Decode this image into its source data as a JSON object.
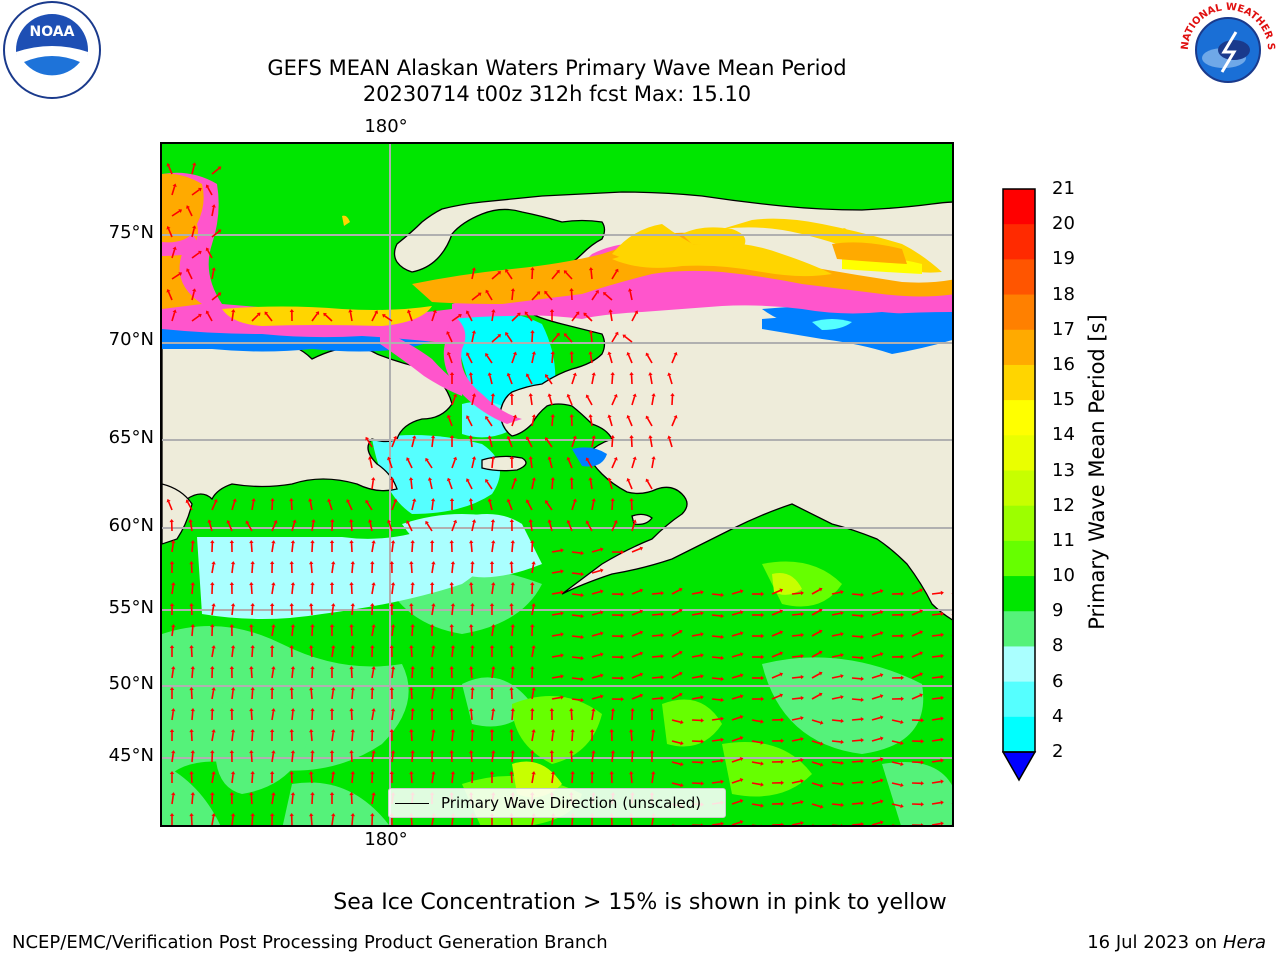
{
  "title_line1": "GEFS MEAN Alaskan Waters Primary Wave Mean Period",
  "title_line2": "20230714 t00z 312h fcst   Max: 15.10",
  "logos": {
    "left": "noaa-logo",
    "right": "nws-logo",
    "noaa_text": "NOAA",
    "nws_ring_text": "NATIONAL WEATHER SERVICE"
  },
  "map": {
    "lon_label_top": "180°",
    "lon_label_bottom": "180°",
    "lat_labels": [
      "75°N",
      "70°N",
      "65°N",
      "60°N",
      "55°N",
      "50°N",
      "45°N"
    ],
    "legend_label": "Primary Wave Direction (unscaled)",
    "colors": {
      "land": "#eeecda",
      "arrow": "#ff0000",
      "grid": "#b0b0b0",
      "coast": "#000000"
    }
  },
  "colorbar": {
    "label": "Primary Wave Mean Period [s]",
    "ticks": [
      "21",
      "20",
      "19",
      "18",
      "17",
      "16",
      "15",
      "14",
      "13",
      "12",
      "11",
      "10",
      "9",
      "8",
      "6",
      "4",
      "2"
    ],
    "colors": [
      "#ff0000",
      "#ff2a00",
      "#ff5500",
      "#ff8000",
      "#ffaa00",
      "#ffd500",
      "#ffff00",
      "#eaff00",
      "#c7ff00",
      "#9cff00",
      "#66ff00",
      "#00e600",
      "#55f27a",
      "#aaffff",
      "#55ffff",
      "#00ffff",
      "#0080ff",
      "#0000ff"
    ]
  },
  "ice_note": "Sea Ice Concentration > 15% is shown in pink to yellow",
  "footer_left": "NCEP/EMC/Verification Post Processing Product Generation Branch",
  "footer_date": "16 Jul 2023 on ",
  "footer_host": "Hera"
}
